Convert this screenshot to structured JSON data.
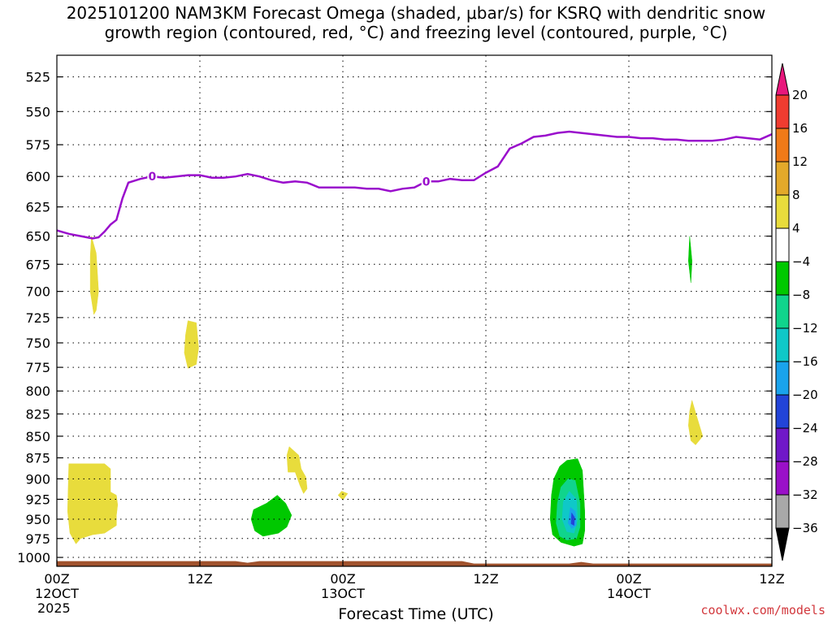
{
  "chart_data": {
    "type": "area",
    "title": "2025101200 NAM3KM Forecast Omega (shaded, μbar/s) for KSRQ with dendritic snow\ngrowth region (contoured, red, °C) and freezing level (contoured, purple, °C)",
    "xlabel": "Forecast Time (UTC)",
    "ylabel": "",
    "y_scale": "log",
    "y_inverted": true,
    "ylim": [
      1012,
      510
    ],
    "xlim": [
      0,
      60
    ],
    "y_ticks": [
      525,
      550,
      575,
      600,
      625,
      650,
      675,
      700,
      725,
      750,
      775,
      800,
      825,
      850,
      875,
      900,
      925,
      950,
      975,
      1000
    ],
    "x_ticks": [
      {
        "hour": 0,
        "label": "00Z",
        "date": "12OCT",
        "year": "2025"
      },
      {
        "hour": 12,
        "label": "12Z",
        "date": "",
        "year": ""
      },
      {
        "hour": 24,
        "label": "00Z",
        "date": "13OCT",
        "year": ""
      },
      {
        "hour": 36,
        "label": "12Z",
        "date": "",
        "year": ""
      },
      {
        "hour": 48,
        "label": "00Z",
        "date": "14OCT",
        "year": ""
      },
      {
        "hour": 60,
        "label": "12Z",
        "date": "",
        "year": ""
      }
    ],
    "grid": true,
    "freezing_level": {
      "name": "freezing level",
      "color": "#9a0ecc",
      "label": "0",
      "label_hours": [
        8,
        31
      ],
      "x": [
        0,
        1,
        2,
        3,
        3.5,
        4,
        4.5,
        5,
        5.5,
        6,
        7,
        8,
        9,
        10,
        11,
        12,
        13,
        14,
        15,
        16,
        17,
        18,
        19,
        20,
        21,
        22,
        23,
        24,
        25,
        26,
        27,
        28,
        29,
        30,
        31,
        32,
        33,
        34,
        35,
        36,
        37,
        38,
        39,
        40,
        41,
        42,
        43,
        44,
        45,
        46,
        47,
        48,
        49,
        50,
        51,
        52,
        53,
        54,
        55,
        56,
        57,
        58,
        59,
        60
      ],
      "y": [
        645,
        648,
        650,
        652,
        651,
        646,
        640,
        636,
        618,
        605,
        602,
        600,
        601,
        600,
        599,
        599,
        601,
        601,
        600,
        598,
        600,
        603,
        605,
        604,
        605,
        609,
        609,
        609,
        609,
        610,
        610,
        612,
        610,
        609,
        604,
        604,
        602,
        603,
        603,
        597,
        592,
        578,
        574,
        569,
        568,
        566,
        565,
        566,
        567,
        568,
        569,
        569,
        570,
        570,
        571,
        571,
        572,
        572,
        572,
        571,
        569,
        570,
        571,
        567
      ]
    },
    "terrain": {
      "color": "#a0522d",
      "top_pressure": 1005
    },
    "omega_regions": [
      {
        "value": 4,
        "color": "#e8dc3c",
        "points": [
          [
            1,
            882
          ],
          [
            4,
            882
          ],
          [
            4.5,
            888
          ],
          [
            4.5,
            916
          ],
          [
            5,
            920
          ],
          [
            5.1,
            932
          ],
          [
            5,
            945
          ],
          [
            5,
            958
          ],
          [
            4,
            968
          ],
          [
            3,
            970
          ],
          [
            2,
            975
          ],
          [
            1.6,
            982
          ],
          [
            1.1,
            968
          ],
          [
            0.9,
            940
          ]
        ]
      },
      {
        "value": 4,
        "color": "#e8dc3c",
        "points": [
          [
            4.5,
            932
          ],
          [
            4.9,
            932
          ],
          [
            4.9,
            958
          ],
          [
            4.5,
            958
          ]
        ]
      },
      {
        "value": 4,
        "color": "#e8dc3c",
        "points": [
          [
            2.9,
            650
          ],
          [
            3.3,
            665
          ],
          [
            3.5,
            700
          ],
          [
            3.3,
            718
          ],
          [
            3.1,
            722
          ],
          [
            2.8,
            700
          ],
          [
            2.8,
            668
          ]
        ]
      },
      {
        "value": 4,
        "color": "#e8dc3c",
        "points": [
          [
            11,
            728
          ],
          [
            11.7,
            730
          ],
          [
            11.9,
            755
          ],
          [
            11.7,
            772
          ],
          [
            11,
            776
          ],
          [
            10.7,
            760
          ],
          [
            10.8,
            742
          ]
        ]
      },
      {
        "value": 4,
        "color": "#e8dc3c",
        "points": [
          [
            19.5,
            862
          ],
          [
            20.3,
            872
          ],
          [
            20.5,
            888
          ],
          [
            20.9,
            898
          ],
          [
            21,
            912
          ],
          [
            20.7,
            918
          ],
          [
            20.4,
            908
          ],
          [
            20,
            892
          ],
          [
            19.4,
            892
          ],
          [
            19.3,
            872
          ]
        ]
      },
      {
        "value": 4,
        "color": "#e8dc3c",
        "points": [
          [
            23.9,
            915
          ],
          [
            24.4,
            918
          ],
          [
            24,
            926
          ],
          [
            23.6,
            920
          ]
        ]
      },
      {
        "value": 4,
        "color": "#e8dc3c",
        "points": [
          [
            53.3,
            810
          ],
          [
            53.7,
            828
          ],
          [
            54.2,
            850
          ],
          [
            53.6,
            860
          ],
          [
            53.2,
            855
          ],
          [
            53,
            838
          ],
          [
            53.1,
            822
          ]
        ]
      },
      {
        "value": -4,
        "color": "#00c800",
        "points": [
          [
            17.6,
            930
          ],
          [
            18.5,
            920
          ],
          [
            19.2,
            930
          ],
          [
            19.7,
            945
          ],
          [
            19.3,
            960
          ],
          [
            18.6,
            968
          ],
          [
            17.3,
            972
          ],
          [
            16.6,
            965
          ],
          [
            16.3,
            950
          ],
          [
            16.5,
            938
          ]
        ]
      },
      {
        "value": -4,
        "color": "#00c800",
        "points": [
          [
            42.8,
            878
          ],
          [
            43.7,
            876
          ],
          [
            44.1,
            890
          ],
          [
            44.2,
            915
          ],
          [
            44.3,
            940
          ],
          [
            44.3,
            965
          ],
          [
            44.1,
            982
          ],
          [
            43.4,
            985
          ],
          [
            42.3,
            980
          ],
          [
            41.6,
            970
          ],
          [
            41.4,
            950
          ],
          [
            41.5,
            920
          ],
          [
            41.7,
            900
          ],
          [
            42.2,
            885
          ]
        ]
      },
      {
        "value": -4,
        "color": "#00c800",
        "points": [
          [
            53.1,
            650
          ],
          [
            53.3,
            672
          ],
          [
            53.2,
            692
          ],
          [
            53,
            672
          ]
        ]
      },
      {
        "value": -8,
        "color": "#10d48c",
        "points": [
          [
            42.9,
            900
          ],
          [
            43.5,
            902
          ],
          [
            43.9,
            930
          ],
          [
            43.9,
            960
          ],
          [
            43.6,
            975
          ],
          [
            42.8,
            977
          ],
          [
            42.2,
            972
          ],
          [
            41.9,
            955
          ],
          [
            42,
            930
          ],
          [
            42.3,
            910
          ]
        ]
      },
      {
        "value": -12,
        "color": "#0fc8c8",
        "points": [
          [
            43,
            915
          ],
          [
            43.6,
            925
          ],
          [
            43.7,
            950
          ],
          [
            43.4,
            968
          ],
          [
            42.8,
            966
          ],
          [
            42.4,
            950
          ],
          [
            42.5,
            928
          ]
        ]
      },
      {
        "value": -16,
        "color": "#1aa3ec",
        "points": [
          [
            43.1,
            935
          ],
          [
            43.5,
            940
          ],
          [
            43.6,
            958
          ],
          [
            43.2,
            962
          ],
          [
            42.9,
            955
          ]
        ]
      },
      {
        "value": -20,
        "color": "#2244d8",
        "points": [
          [
            43.2,
            942
          ],
          [
            43.45,
            948
          ],
          [
            43.4,
            958
          ],
          [
            43.15,
            956
          ]
        ]
      }
    ],
    "colorbar": {
      "unit": "μbar/s",
      "labels": [
        "20",
        "16",
        "12",
        "8",
        "4",
        "−4",
        "−8",
        "−12",
        "−16",
        "−20",
        "−24",
        "−28",
        "−32",
        "−36"
      ],
      "colors": [
        "#e8177c",
        "#f03c30",
        "#f07a18",
        "#e3a92a",
        "#e8dc3c",
        "#ffffff",
        "#00c800",
        "#10d48c",
        "#0fc8c8",
        "#1aa3ec",
        "#2244d8",
        "#7018c8",
        "#9a10c8",
        "#a8a8a8",
        "#000000"
      ]
    }
  },
  "credit": "coolwx.com/models"
}
